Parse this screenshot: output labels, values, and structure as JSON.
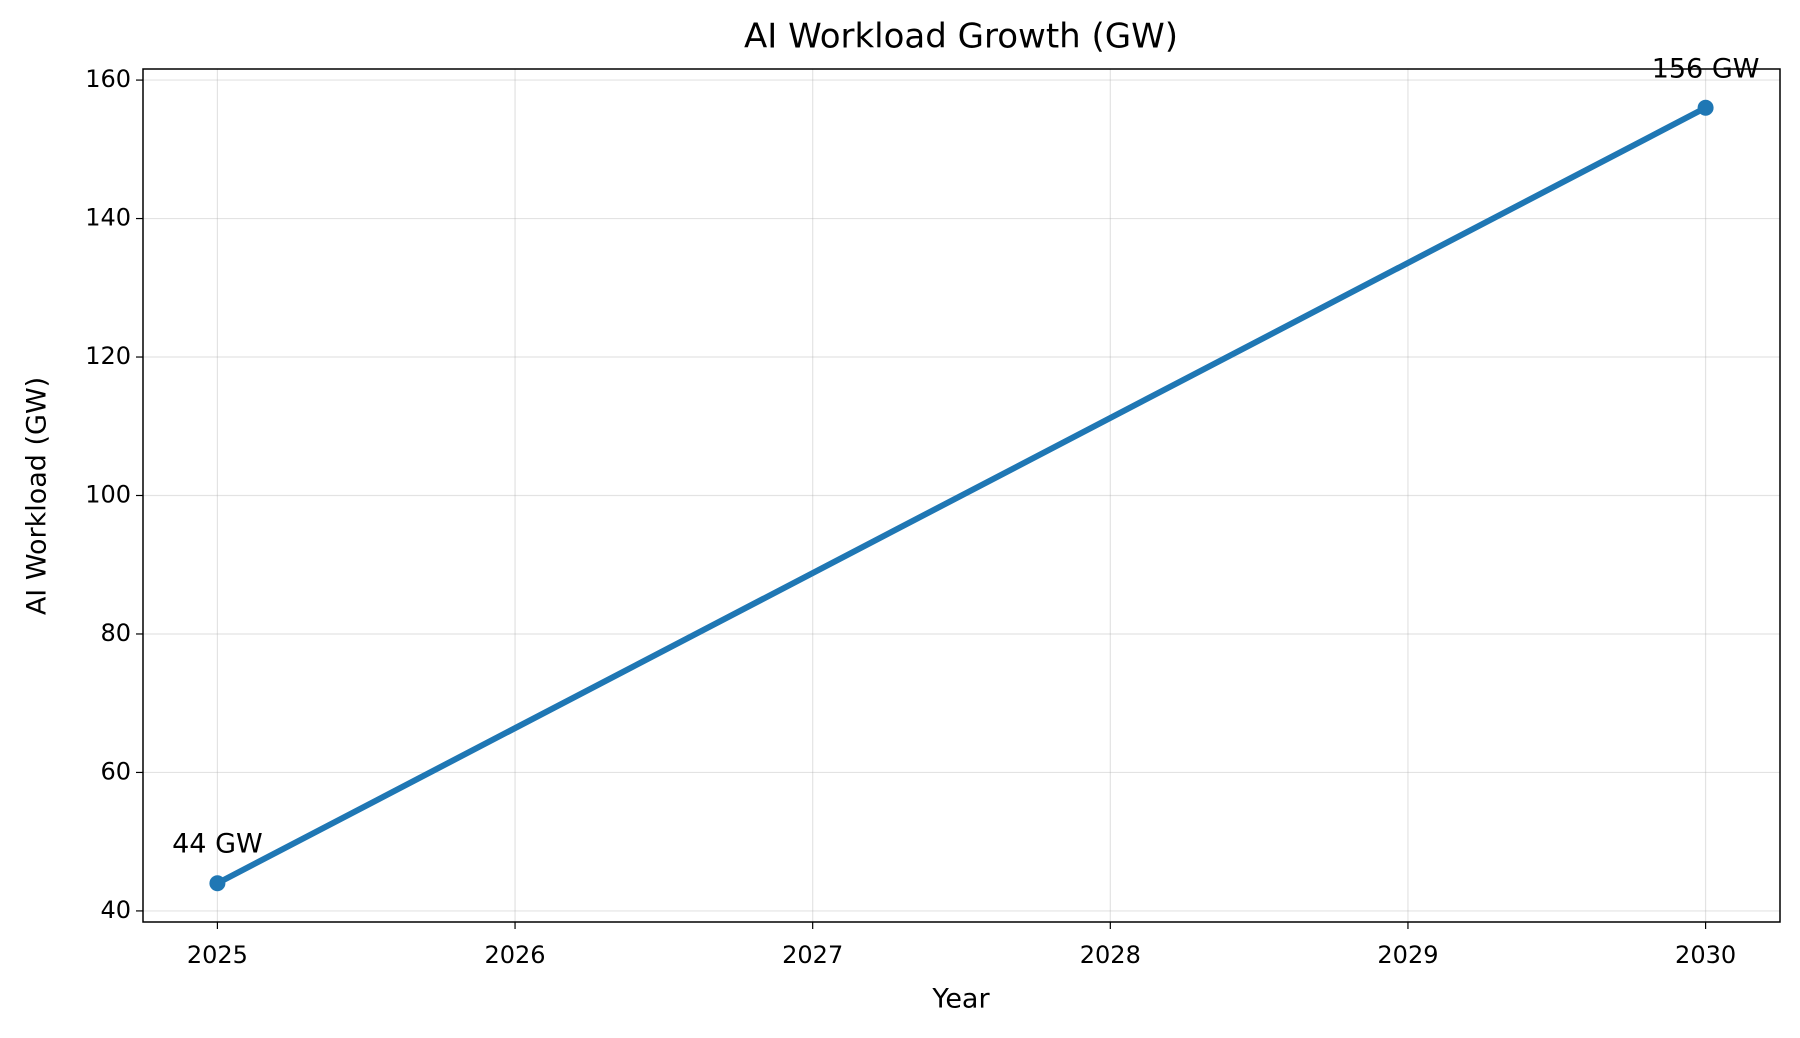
{
  "chart_data": {
    "type": "line",
    "title": "AI Workload Growth (GW)",
    "xlabel": "Year",
    "ylabel": "AI Workload (GW)",
    "x": [
      2025,
      2030
    ],
    "series": [
      {
        "name": "AI Workload",
        "color": "#1f77b4",
        "values": [
          44,
          156
        ],
        "value_labels": [
          "44 GW",
          "156 GW"
        ]
      }
    ],
    "xlim": [
      2024.75,
      2030.25
    ],
    "xticks": [
      2025,
      2026,
      2027,
      2028,
      2029,
      2030
    ],
    "ylim": [
      38.4,
      161.6
    ],
    "yticks": [
      40,
      60,
      80,
      100,
      120,
      140,
      160
    ],
    "grid": true
  }
}
